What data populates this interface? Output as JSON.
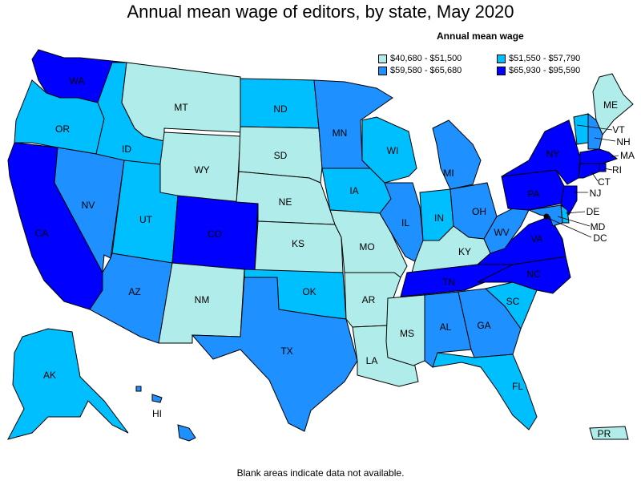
{
  "title": "Annual mean wage of editors, by state, May 2020",
  "legend": {
    "title": "Annual mean wage",
    "items": [
      {
        "label": "$40,680 - $51,500",
        "color": "#b0ece9"
      },
      {
        "label": "$51,550 - $57,790",
        "color": "#00bfff"
      },
      {
        "label": "$59,580 - $65,680",
        "color": "#1e90ff"
      },
      {
        "label": "$65,930 - $95,590",
        "color": "#0000ff"
      }
    ]
  },
  "note": "Blank areas indicate data not available.",
  "states": {
    "WA": {
      "label": "WA",
      "tier": 3
    },
    "OR": {
      "label": "OR",
      "tier": 1
    },
    "CA": {
      "label": "CA",
      "tier": 3
    },
    "ID": {
      "label": "ID",
      "tier": 1
    },
    "NV": {
      "label": "NV",
      "tier": 2
    },
    "MT": {
      "label": "MT",
      "tier": 0
    },
    "WY": {
      "label": "WY",
      "tier": 0
    },
    "UT": {
      "label": "UT",
      "tier": 1
    },
    "AZ": {
      "label": "AZ",
      "tier": 2
    },
    "CO": {
      "label": "CO",
      "tier": 3
    },
    "NM": {
      "label": "NM",
      "tier": 0
    },
    "ND": {
      "label": "ND",
      "tier": 1
    },
    "SD": {
      "label": "SD",
      "tier": 0
    },
    "NE": {
      "label": "NE",
      "tier": 0
    },
    "KS": {
      "label": "KS",
      "tier": 0
    },
    "OK": {
      "label": "OK",
      "tier": 1
    },
    "TX": {
      "label": "TX",
      "tier": 2
    },
    "MN": {
      "label": "MN",
      "tier": 2
    },
    "IA": {
      "label": "IA",
      "tier": 1
    },
    "MO": {
      "label": "MO",
      "tier": 0
    },
    "AR": {
      "label": "AR",
      "tier": 0
    },
    "LA": {
      "label": "LA",
      "tier": 0
    },
    "WI": {
      "label": "WI",
      "tier": 1
    },
    "IL": {
      "label": "IL",
      "tier": 2
    },
    "MI": {
      "label": "MI",
      "tier": 2
    },
    "IN": {
      "label": "IN",
      "tier": 1
    },
    "OH": {
      "label": "OH",
      "tier": 2
    },
    "KY": {
      "label": "KY",
      "tier": 0
    },
    "TN": {
      "label": "TN",
      "tier": 3
    },
    "MS": {
      "label": "MS",
      "tier": 0
    },
    "AL": {
      "label": "AL",
      "tier": 2
    },
    "GA": {
      "label": "GA",
      "tier": 2
    },
    "FL": {
      "label": "FL",
      "tier": 1
    },
    "SC": {
      "label": "SC",
      "tier": 1
    },
    "NC": {
      "label": "NC",
      "tier": 3
    },
    "VA": {
      "label": "VA",
      "tier": 3
    },
    "WV": {
      "label": "WV",
      "tier": 2
    },
    "PA": {
      "label": "PA",
      "tier": 3
    },
    "NY": {
      "label": "NY",
      "tier": 3
    },
    "ME": {
      "label": "ME",
      "tier": 0
    },
    "VT": {
      "label": "VT",
      "tier": 1
    },
    "NH": {
      "label": "NH",
      "tier": 2
    },
    "MA": {
      "label": "MA",
      "tier": 3
    },
    "RI": {
      "label": "RI",
      "tier": 3
    },
    "CT": {
      "label": "CT",
      "tier": 3
    },
    "NJ": {
      "label": "NJ",
      "tier": 3
    },
    "DE": {
      "label": "DE",
      "tier": 1
    },
    "MD": {
      "label": "MD",
      "tier": 2
    },
    "DC": {
      "label": "DC",
      "tier": 3
    },
    "AK": {
      "label": "AK",
      "tier": 1
    },
    "HI": {
      "label": "HI",
      "tier": 2
    },
    "PR": {
      "label": "PR",
      "tier": 0
    }
  }
}
